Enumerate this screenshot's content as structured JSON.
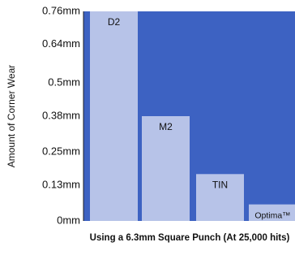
{
  "chart_data": {
    "type": "bar",
    "categories": [
      "D2",
      "M2",
      "TIN",
      "Optima™"
    ],
    "values": [
      0.76,
      0.38,
      0.17,
      0.06
    ],
    "xlabel": "Using a 6.3mm Square Punch (At 25,000 hits)",
    "ylabel": "Amount of Corner Wear",
    "ylim": [
      0,
      0.76
    ],
    "yticks": [
      0,
      0.13,
      0.25,
      0.38,
      0.5,
      0.64,
      0.76
    ],
    "ytick_labels": [
      "0mm",
      "0.13mm",
      "0.25mm",
      "0.38mm",
      "0.5mm",
      "0.64mm",
      "0.76mm"
    ],
    "grid": false,
    "legend": "none",
    "colors": {
      "plot_background": "#3d62c2",
      "bar_fill": "#b7c3e8",
      "axis_line": "#1f1f1f"
    }
  }
}
